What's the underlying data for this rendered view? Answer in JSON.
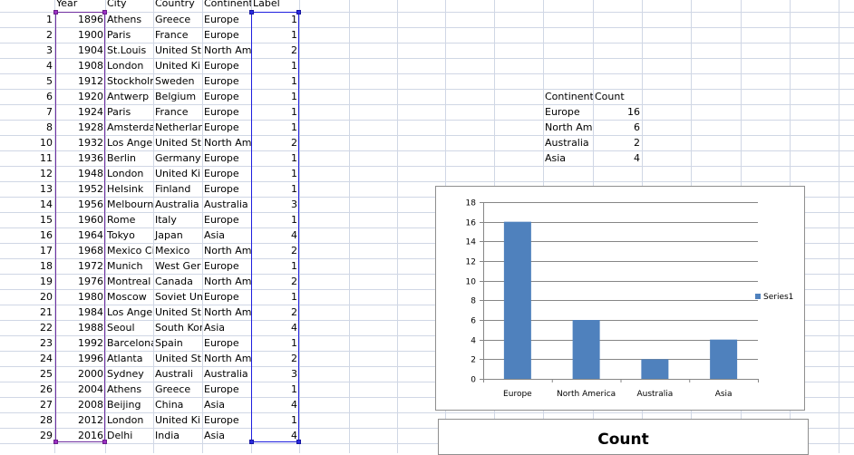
{
  "headers": [
    "Year",
    "City",
    "Country",
    "Continent",
    "Label"
  ],
  "rows": [
    {
      "n": "1",
      "year": "1896",
      "city": "Athens",
      "country": "Greece",
      "continent": "Europe",
      "label": "1"
    },
    {
      "n": "2",
      "year": "1900",
      "city": "Paris",
      "country": "France",
      "continent": "Europe",
      "label": "1"
    },
    {
      "n": "3",
      "year": "1904",
      "city": "St.Louis",
      "country": "United St",
      "continent": "North Am",
      "label": "2"
    },
    {
      "n": "4",
      "year": "1908",
      "city": "London",
      "country": "United Ki",
      "continent": "Europe",
      "label": "1"
    },
    {
      "n": "5",
      "year": "1912",
      "city": "Stockholm",
      "country": "Sweden",
      "continent": "Europe",
      "label": "1"
    },
    {
      "n": "6",
      "year": "1920",
      "city": "Antwerp",
      "country": "Belgium",
      "continent": "Europe",
      "label": "1"
    },
    {
      "n": "7",
      "year": "1924",
      "city": "Paris",
      "country": "France",
      "continent": "Europe",
      "label": "1"
    },
    {
      "n": "8",
      "year": "1928",
      "city": "Amsterda",
      "country": "Netherlar",
      "continent": "Europe",
      "label": "1"
    },
    {
      "n": "10",
      "year": "1932",
      "city": "Los Angel",
      "country": "United St",
      "continent": "North Am",
      "label": "2"
    },
    {
      "n": "11",
      "year": "1936",
      "city": "Berlin",
      "country": "Germany",
      "continent": "Europe",
      "label": "1"
    },
    {
      "n": "12",
      "year": "1948",
      "city": "London",
      "country": "United Ki",
      "continent": "Europe",
      "label": "1"
    },
    {
      "n": "13",
      "year": "1952",
      "city": "Helsink",
      "country": "Finland",
      "continent": "Europe",
      "label": "1"
    },
    {
      "n": "14",
      "year": "1956",
      "city": "Melbourn",
      "country": "Australia",
      "continent": "Australia",
      "label": "3"
    },
    {
      "n": "15",
      "year": "1960",
      "city": "Rome",
      "country": "Italy",
      "continent": "Europe",
      "label": "1"
    },
    {
      "n": "16",
      "year": "1964",
      "city": "Tokyo",
      "country": "Japan",
      "continent": "Asia",
      "label": "4"
    },
    {
      "n": "17",
      "year": "1968",
      "city": "Mexico Ci",
      "country": "Mexico",
      "continent": "North Am",
      "label": "2"
    },
    {
      "n": "18",
      "year": "1972",
      "city": "Munich",
      "country": "West Ger",
      "continent": "Europe",
      "label": "1"
    },
    {
      "n": "19",
      "year": "1976",
      "city": "Montreal",
      "country": "Canada",
      "continent": "North Am",
      "label": "2"
    },
    {
      "n": "20",
      "year": "1980",
      "city": "Moscow",
      "country": "Soviet Un",
      "continent": "Europe",
      "label": "1"
    },
    {
      "n": "21",
      "year": "1984",
      "city": "Los Angel",
      "country": "United St",
      "continent": "North Am",
      "label": "2"
    },
    {
      "n": "22",
      "year": "1988",
      "city": "Seoul",
      "country": "South Kor",
      "continent": "Asia",
      "label": "4"
    },
    {
      "n": "23",
      "year": "1992",
      "city": "Barcelona",
      "country": "Spain",
      "continent": "Europe",
      "label": "1"
    },
    {
      "n": "24",
      "year": "1996",
      "city": "Atlanta",
      "country": "United St",
      "continent": "North Am",
      "label": "2"
    },
    {
      "n": "25",
      "year": "2000",
      "city": "Sydney",
      "country": "Australi",
      "continent": "Australia",
      "label": "3"
    },
    {
      "n": "26",
      "year": "2004",
      "city": "Athens",
      "country": "Greece",
      "continent": "Europe",
      "label": "1"
    },
    {
      "n": "27",
      "year": "2008",
      "city": "Beijing",
      "country": "China",
      "continent": "Asia",
      "label": "4"
    },
    {
      "n": "28",
      "year": "2012",
      "city": "London",
      "country": "United Ki",
      "continent": "Europe",
      "label": "1"
    },
    {
      "n": "29",
      "year": "2016",
      "city": "Delhi",
      "country": "India",
      "continent": "Asia",
      "label": "4"
    }
  ],
  "summary": {
    "header_continent": "Continent",
    "header_count": "Count",
    "rows": [
      {
        "continent": "Europe",
        "count": "16"
      },
      {
        "continent": "North Am",
        "count": "6"
      },
      {
        "continent": "Australia",
        "count": "2"
      },
      {
        "continent": "Asia",
        "count": "4"
      }
    ]
  },
  "colors": {
    "bar": "#4f81bd",
    "grid": "#868686",
    "selection_purple": "#7030a0",
    "selection_blue": "#1f1fdf"
  },
  "chart_data": {
    "type": "bar",
    "categories": [
      "Europe",
      "North America",
      "Australia",
      "Asia"
    ],
    "series": [
      {
        "name": "Series1",
        "values": [
          16,
          6,
          2,
          4
        ]
      }
    ],
    "ylim": [
      0,
      18
    ],
    "yticks": [
      0,
      2,
      4,
      6,
      8,
      10,
      12,
      14,
      16,
      18
    ],
    "grid": true,
    "legend": "right"
  },
  "chart2": {
    "title": "Count"
  }
}
